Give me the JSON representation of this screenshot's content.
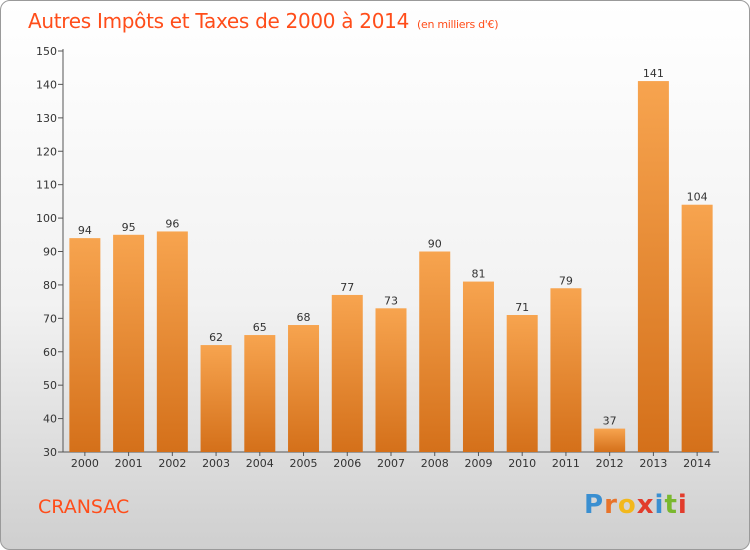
{
  "header": {
    "title": "Autres Impôts et Taxes de 2000 à 2014",
    "subtitle": "(en milliers d'€)"
  },
  "footer": {
    "commune": "CRANSAC",
    "logo_letters": [
      "P",
      "r",
      "o",
      "x",
      "i",
      "t",
      "i"
    ]
  },
  "colors": {
    "accent": "#ff4d1a",
    "bar_light": "#f7a44f",
    "bar_dark": "#d4701a",
    "logo": [
      "#3a8fd1",
      "#e8732a",
      "#f2b81c",
      "#e23c2c",
      "#3a8fd1",
      "#7ab82e",
      "#e23c2c"
    ]
  },
  "chart_data": {
    "type": "bar",
    "title": "Autres Impôts et Taxes de 2000 à 2014",
    "subtitle": "(en milliers d'€)",
    "categories": [
      "2000",
      "2001",
      "2002",
      "2003",
      "2004",
      "2005",
      "2006",
      "2007",
      "2008",
      "2009",
      "2010",
      "2011",
      "2012",
      "2013",
      "2014"
    ],
    "values": [
      94,
      95,
      96,
      62,
      65,
      68,
      77,
      73,
      90,
      81,
      71,
      79,
      37,
      141,
      104
    ],
    "ylim": [
      30,
      150
    ],
    "yticks": [
      30,
      40,
      50,
      60,
      70,
      80,
      90,
      100,
      110,
      120,
      130,
      140,
      150
    ],
    "grid": false,
    "data_labels": true
  }
}
